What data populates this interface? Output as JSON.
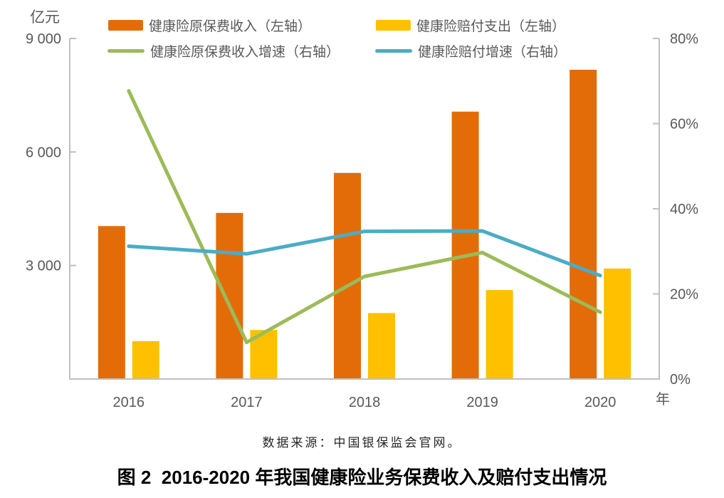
{
  "figure": {
    "source": "数据来源：中国银保监会官网。",
    "caption": "图 2  2016-2020 年我国健康险业务保费收入及赔付支出情况"
  },
  "legend": {
    "items": [
      {
        "label": "健康险原保费收入（左轴）",
        "type": "bar",
        "color": "#E36C09"
      },
      {
        "label": "健康险赔付支出（左轴）",
        "type": "bar",
        "color": "#FFC000"
      },
      {
        "label": "健康险原保费收入增速（右轴）",
        "type": "line",
        "color": "#9BBB59"
      },
      {
        "label": "健康险赔付增速（右轴）",
        "type": "line",
        "color": "#4BACC6"
      }
    ]
  },
  "chart_data": {
    "type": "bar",
    "subtype": "bar-line-combo",
    "categories": [
      "2016",
      "2017",
      "2018",
      "2019",
      "2020"
    ],
    "series": [
      {
        "name": "健康险原保费收入（左轴）",
        "type": "bar",
        "axis": "left",
        "color": "#E36C09",
        "values": [
          4043,
          4390,
          5448,
          7066,
          8173
        ]
      },
      {
        "name": "健康险赔付支出（左轴）",
        "type": "bar",
        "axis": "left",
        "color": "#FFC000",
        "values": [
          1001,
          1295,
          1744,
          2351,
          2921
        ]
      },
      {
        "name": "健康险原保费收入增速（右轴）",
        "type": "line",
        "axis": "right",
        "color": "#9BBB59",
        "values": [
          67.7,
          8.6,
          24.1,
          29.7,
          15.7
        ]
      },
      {
        "name": "健康险赔付增速（右轴）",
        "type": "line",
        "axis": "right",
        "color": "#4BACC6",
        "values": [
          31.2,
          29.4,
          34.7,
          34.8,
          24.3
        ]
      }
    ],
    "left_axis": {
      "title": "亿元",
      "min": 0,
      "max": 9000,
      "tick_values": [
        3000,
        6000,
        9000
      ],
      "tick_labels": [
        "3 000",
        "6 000",
        "9 000"
      ]
    },
    "right_axis": {
      "min": 0,
      "max": 80,
      "tick_values": [
        0,
        20,
        40,
        60,
        80
      ],
      "tick_labels": [
        "0%",
        "20%",
        "40%",
        "60%",
        "80%"
      ]
    },
    "x_axis": {
      "title": "年"
    },
    "grid": false,
    "legend_position": "top",
    "colors": {
      "axis_line": "#BFBFBF",
      "tick_text": "#595959"
    }
  }
}
